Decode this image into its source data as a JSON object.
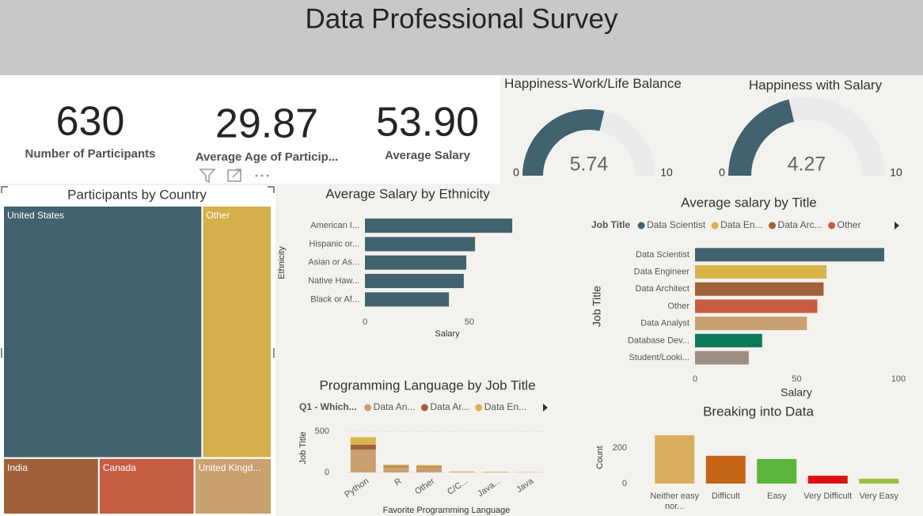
{
  "header": {
    "title": "Data Professional Survey"
  },
  "cards": [
    {
      "value": "630",
      "label": "Number of Participants"
    },
    {
      "value": "29.87",
      "label": "Average Age of Particip..."
    },
    {
      "value": "53.90",
      "label": "Average Salary"
    }
  ],
  "chart_data": [
    {
      "type": "gauge",
      "title": "Happiness-Work/Life Balance",
      "value": 5.74,
      "min": 0,
      "max": 10,
      "color": "#41626f",
      "track_color": "#ebebeb"
    },
    {
      "type": "gauge",
      "title": "Happiness with Salary",
      "value": 4.27,
      "min": 0,
      "max": 10,
      "color": "#41626f",
      "track_color": "#ebebeb"
    },
    {
      "type": "treemap",
      "title": "Participants by Country",
      "categories": [
        "United States",
        "Other",
        "India",
        "Canada",
        "United Kingd..."
      ],
      "values": [
        382,
        133,
        41,
        41,
        33
      ],
      "colors": [
        "#41626f",
        "#d4b04a",
        "#a0603a",
        "#c65c42",
        "#c9a070"
      ]
    },
    {
      "type": "hbar",
      "title": "Average Salary by Ethnicity",
      "categories": [
        "American I...",
        "Hispanic or...",
        "Asian or As...",
        "Native Haw...",
        "Black or Af..."
      ],
      "values": [
        70.5,
        52.7,
        48.5,
        47.3,
        40.2
      ],
      "color": "#41626f",
      "xlim": [
        0,
        75
      ],
      "xticks": [
        0,
        50
      ],
      "xlabel": "Salary",
      "ylabel": "Ethnicity"
    },
    {
      "type": "stacked_column",
      "title": "Programming Language by Job Title",
      "legend_title": "Q1 - Which...",
      "categories": [
        "Python",
        "R",
        "Other",
        "C/C...",
        "Java...",
        "Java"
      ],
      "series": [
        {
          "name": "Data An...",
          "color": "#c9a070",
          "values": [
            280,
            70,
            65,
            8,
            5,
            3
          ]
        },
        {
          "name": "Data Ar...",
          "color": "#a0603a",
          "values": [
            60,
            10,
            10,
            1,
            1,
            0
          ]
        },
        {
          "name": "Data En...",
          "color": "#d9b44a",
          "values": [
            90,
            15,
            15,
            3,
            2,
            1
          ]
        }
      ],
      "ylim": [
        0,
        550
      ],
      "yticks": [
        0,
        500
      ],
      "xlabel": "Favorite Programming Language",
      "ylabel": "Job Title",
      "grid": true
    },
    {
      "type": "hbar",
      "title": "Average salary by Title",
      "legend_title": "Job Title",
      "legend": [
        "Data Scientist",
        "Data En...",
        "Data Arc...",
        "Other"
      ],
      "categories": [
        "Data Scientist",
        "Data Engineer",
        "Data Architect",
        "Other",
        "Data Analyst",
        "Database Dev...",
        "Student/Looki..."
      ],
      "values": [
        93.0,
        64.7,
        63.2,
        60.1,
        55.0,
        33.0,
        26.4
      ],
      "colors": [
        "#41626f",
        "#d9b44a",
        "#a0603a",
        "#c65c42",
        "#c9a070",
        "#0a7a5a",
        "#9b8e85"
      ],
      "xlim": [
        0,
        100
      ],
      "xticks": [
        0,
        50,
        100
      ],
      "xlabel": "Salary",
      "ylabel": "Job Title"
    },
    {
      "type": "column",
      "title": "Breaking into Data",
      "categories": [
        "Neither easy nor...",
        "Difficult",
        "Easy",
        "Very Difficult",
        "Very Easy"
      ],
      "values": [
        271,
        156,
        138,
        44,
        27
      ],
      "colors": [
        "#d9ad5d",
        "#c46414",
        "#5ab53a",
        "#e01010",
        "#9cc03c"
      ],
      "ylim": [
        0,
        300
      ],
      "yticks": [
        0,
        200
      ],
      "ylabel": "Count"
    }
  ]
}
